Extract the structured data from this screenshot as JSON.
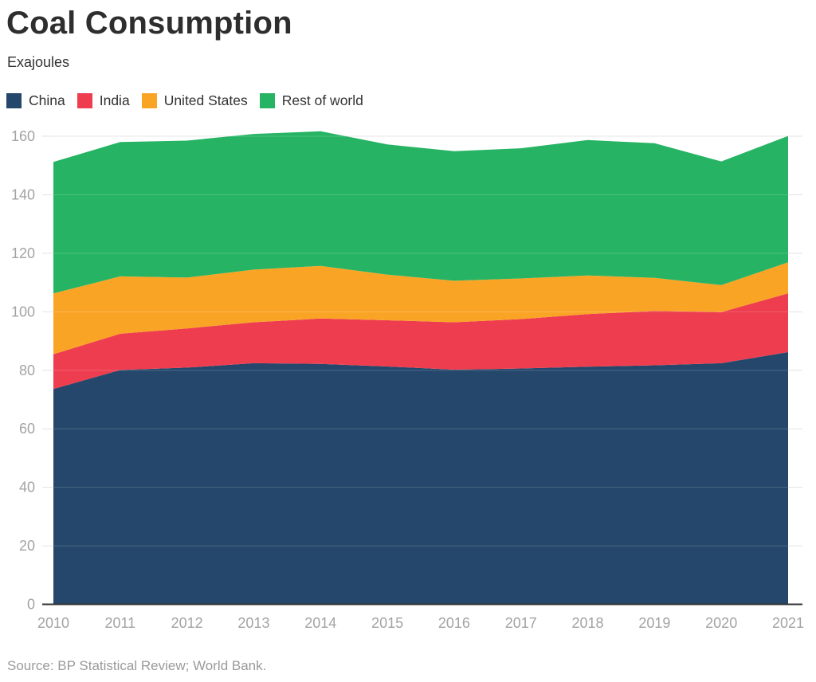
{
  "header": {
    "title": "Coal Consumption",
    "subtitle": "Exajoules"
  },
  "footer": {
    "source": "Source: BP Statistical Review; World Bank."
  },
  "chart_data": {
    "type": "area",
    "stacked": true,
    "title": "Coal Consumption",
    "subtitle": "Exajoules",
    "ylabel": "Exajoules",
    "xlabel": "",
    "x": [
      2010,
      2011,
      2012,
      2013,
      2014,
      2015,
      2016,
      2017,
      2018,
      2019,
      2020,
      2021
    ],
    "series": [
      {
        "name": "China",
        "color": "#24476B",
        "values": [
          73.6,
          80.1,
          80.9,
          82.4,
          82.2,
          81.3,
          80.2,
          80.6,
          81.2,
          81.7,
          82.4,
          86.2
        ]
      },
      {
        "name": "India",
        "color": "#ED3D4F",
        "values": [
          11.9,
          12.4,
          13.4,
          14.0,
          15.5,
          15.8,
          16.2,
          16.9,
          18.0,
          18.6,
          17.5,
          20.1
        ]
      },
      {
        "name": "United States",
        "color": "#FAA426",
        "values": [
          20.8,
          19.6,
          17.4,
          18.0,
          18.0,
          15.6,
          14.2,
          13.9,
          13.2,
          11.3,
          9.2,
          10.6
        ]
      },
      {
        "name": "Rest of world",
        "color": "#26B464",
        "values": [
          44.9,
          45.9,
          46.8,
          46.4,
          46.0,
          44.5,
          44.3,
          44.5,
          46.3,
          46.0,
          42.3,
          43.2
        ]
      }
    ],
    "ylim": [
      0,
      160
    ],
    "ytick_step": 20,
    "yticks": [
      0,
      20,
      40,
      60,
      80,
      100,
      120,
      140,
      160
    ],
    "grid": "horizontal",
    "legend_position": "top"
  },
  "style": {
    "background": "#FFFFFF",
    "grid_color": "#E2E2E2",
    "grid_over_area_color": "rgba(255,255,255,0.18)",
    "axis_line_color": "#333333",
    "tick_label_color": "#A3A3A3",
    "title_color": "#2E2E2E",
    "text_color": "#333333",
    "source_color": "#9A9A9A"
  }
}
